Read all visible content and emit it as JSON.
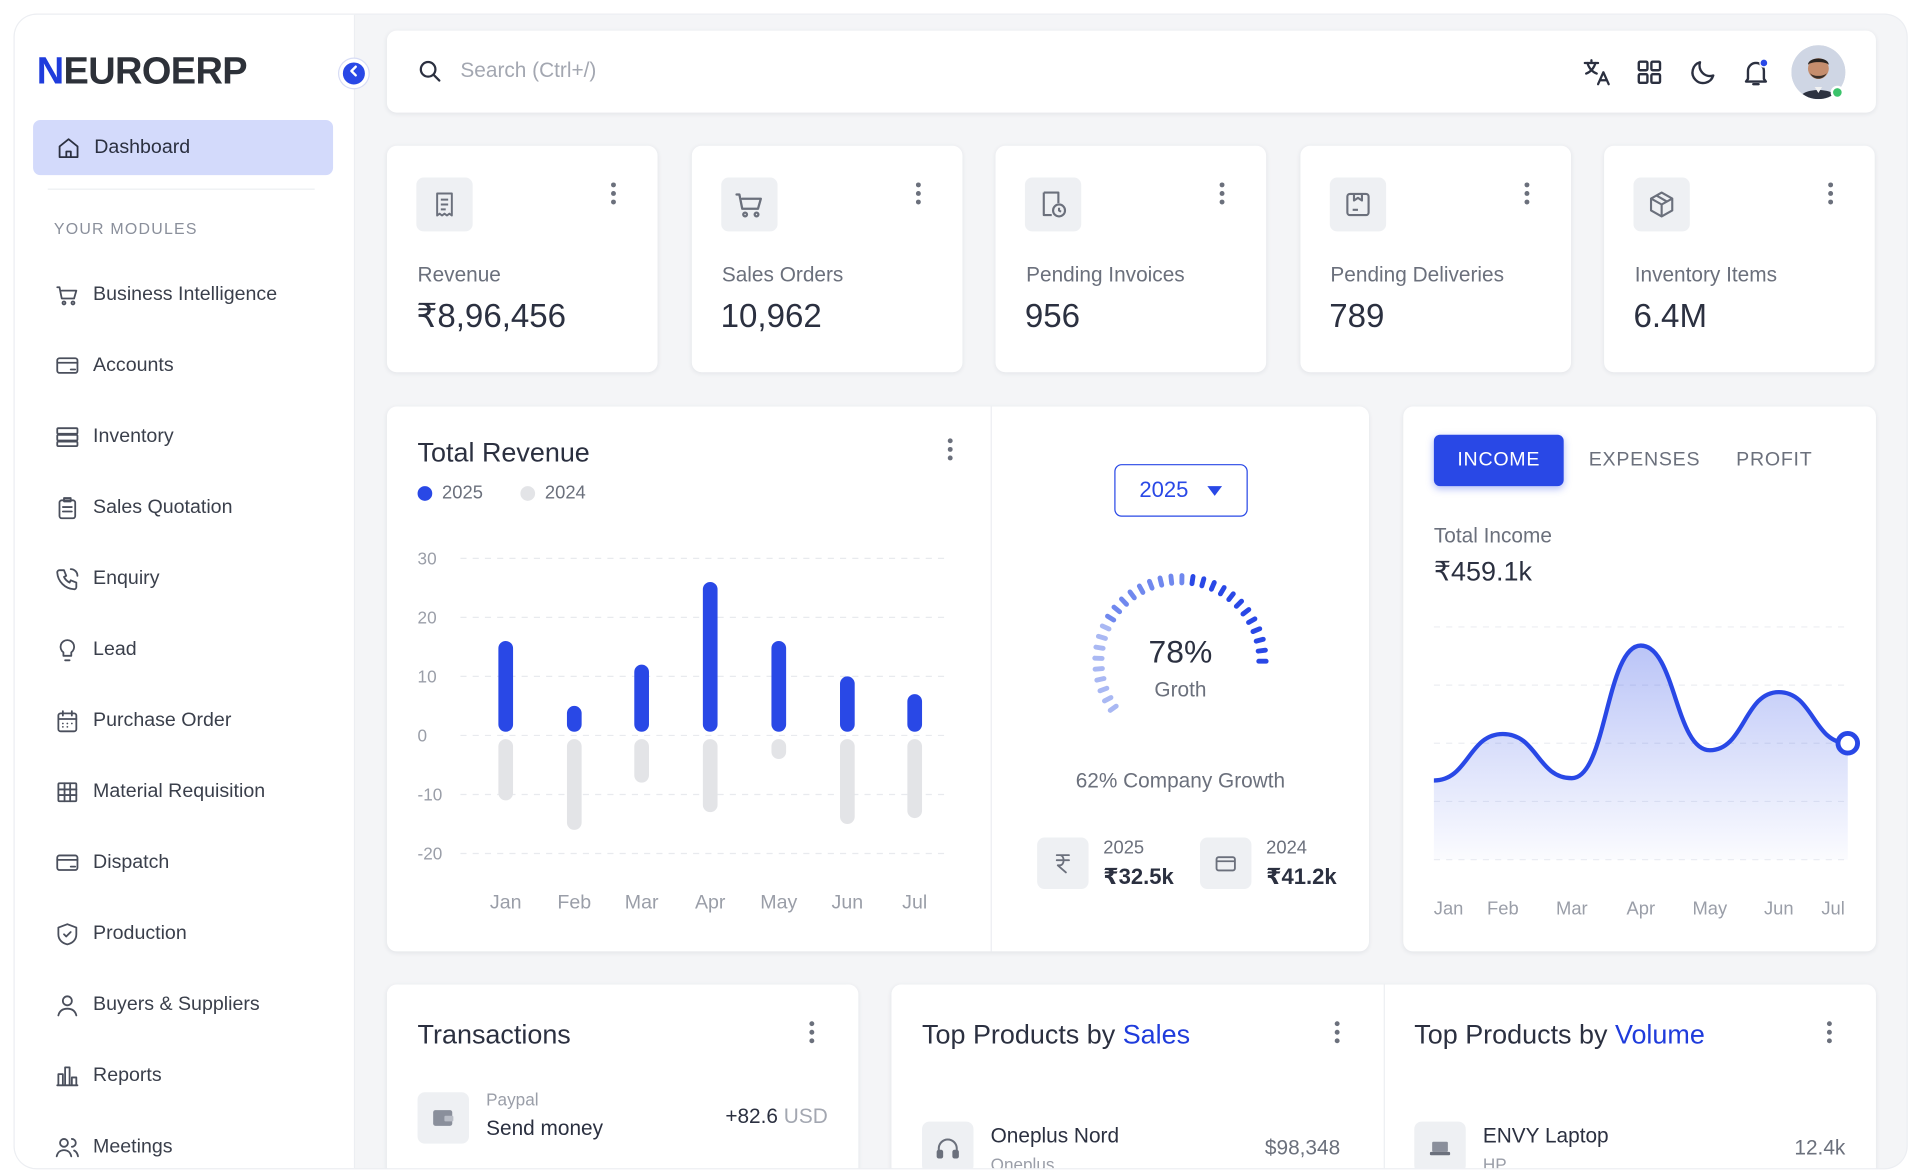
{
  "brand": {
    "logo_text": "NEUROERP"
  },
  "search": {
    "placeholder": "Search (Ctrl+/)"
  },
  "sidebar": {
    "active_item": "Dashboard",
    "section_label": "YOUR MODULES",
    "items": [
      {
        "label": "Business Intelligence",
        "icon": "cart-icon"
      },
      {
        "label": "Accounts",
        "icon": "card-icon"
      },
      {
        "label": "Inventory",
        "icon": "server-icon"
      },
      {
        "label": "Sales Quotation",
        "icon": "clipboard-icon"
      },
      {
        "label": "Enquiry",
        "icon": "phone-icon"
      },
      {
        "label": "Lead",
        "icon": "bulb-icon"
      },
      {
        "label": "Purchase Order",
        "icon": "calendar-icon"
      },
      {
        "label": "Material Requisition",
        "icon": "grid-icon"
      },
      {
        "label": "Dispatch",
        "icon": "card-icon"
      },
      {
        "label": "Production",
        "icon": "shield-icon"
      },
      {
        "label": "Buyers & Suppliers",
        "icon": "user-icon"
      },
      {
        "label": "Reports",
        "icon": "chart-icon"
      },
      {
        "label": "Meetings",
        "icon": "users-icon"
      }
    ]
  },
  "kpis": [
    {
      "label": "Revenue",
      "value": "₹8,96,456",
      "icon": "receipt-icon"
    },
    {
      "label": "Sales Orders",
      "value": "10,962",
      "icon": "cart-icon"
    },
    {
      "label": "Pending Invoices",
      "value": "956",
      "icon": "invoice-clock-icon"
    },
    {
      "label": "Pending Deliveries",
      "value": "789",
      "icon": "box-icon"
    },
    {
      "label": "Inventory Items",
      "value": "6.4M",
      "icon": "cube-icon"
    }
  ],
  "revenue": {
    "title": "Total Revenue",
    "legend": [
      "2025",
      "2024"
    ],
    "year_select": "2025",
    "growth_percent": "78%",
    "growth_label": "Groth",
    "company_growth": "62% Company Growth",
    "stats": [
      {
        "year": "2025",
        "value": "₹32.5k",
        "icon": "rupee-icon"
      },
      {
        "year": "2024",
        "value": "₹41.2k",
        "icon": "wallet-icon"
      }
    ]
  },
  "income": {
    "tabs": [
      "INCOME",
      "EXPENSES",
      "PROFIT"
    ],
    "label": "Total Income",
    "value": "₹459.1k"
  },
  "transactions": {
    "title": "Transactions",
    "items": [
      {
        "provider": "Paypal",
        "description": "Send money",
        "amount": "+82.6",
        "currency": "USD"
      }
    ]
  },
  "top_sales": {
    "title_prefix": "Top Products by",
    "title_accent": "Sales",
    "items": [
      {
        "name": "Oneplus Nord",
        "brand": "Oneplus",
        "value": "$98,348"
      }
    ]
  },
  "top_volume": {
    "title_prefix": "Top Products by",
    "title_accent": "Volume",
    "items": [
      {
        "name": "ENVY Laptop",
        "brand": "HP",
        "value": "12.4k"
      }
    ]
  },
  "colors": {
    "accent": "#2948e6",
    "gray_bar": "#e3e4e7",
    "success": "#3bc36b"
  },
  "chart_data": [
    {
      "type": "bar",
      "title": "Total Revenue",
      "categories": [
        "Jan",
        "Feb",
        "Mar",
        "Apr",
        "May",
        "Jun",
        "Jul"
      ],
      "series": [
        {
          "name": "2025",
          "values": [
            16,
            5,
            12,
            26,
            16,
            10,
            7
          ]
        },
        {
          "name": "2024",
          "values": [
            -11,
            -16,
            -8,
            -13,
            -4,
            -15,
            -14
          ]
        }
      ],
      "yticks": [
        30,
        20,
        10,
        0,
        -10,
        -20
      ],
      "ylim": [
        -20,
        30
      ],
      "grid": true,
      "legend": "top-left"
    },
    {
      "type": "area",
      "categories": [
        "Jan",
        "Feb",
        "Mar",
        "Apr",
        "May",
        "Jun",
        "Jul"
      ],
      "series": [
        {
          "values": [
            34,
            54,
            35,
            92,
            47,
            72,
            50
          ]
        }
      ],
      "ylim": [
        0,
        100
      ],
      "grid": true
    }
  ]
}
